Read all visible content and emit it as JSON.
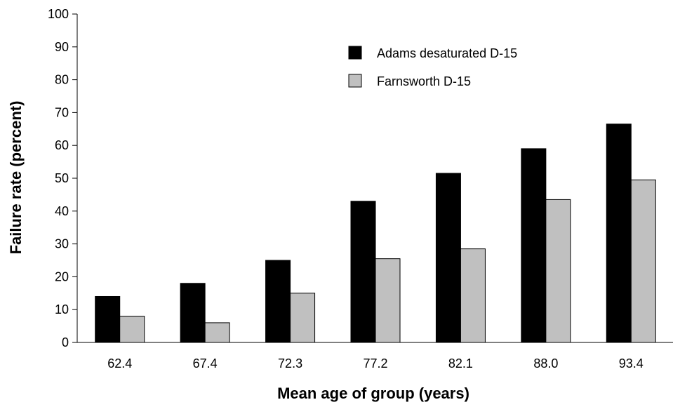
{
  "chart_data": {
    "type": "bar",
    "title": "",
    "xlabel": "Mean age of group (years)",
    "ylabel": "Failure rate (percent)",
    "categories": [
      "62.4",
      "67.4",
      "72.3",
      "77.2",
      "82.1",
      "88.0",
      "93.4"
    ],
    "series": [
      {
        "name": "Adams desaturated D-15",
        "color": "#000000",
        "values": [
          14,
          18,
          25,
          43,
          51.5,
          59,
          66.5
        ]
      },
      {
        "name": "Farnsworth D-15",
        "color": "#c0c0c0",
        "values": [
          8,
          6,
          15,
          25.5,
          28.5,
          43.5,
          49.5
        ]
      }
    ],
    "ylim": [
      0,
      100
    ],
    "yticks": [
      0,
      10,
      20,
      30,
      40,
      50,
      60,
      70,
      80,
      90,
      100
    ],
    "grid": false,
    "legend_position": "top-right"
  }
}
